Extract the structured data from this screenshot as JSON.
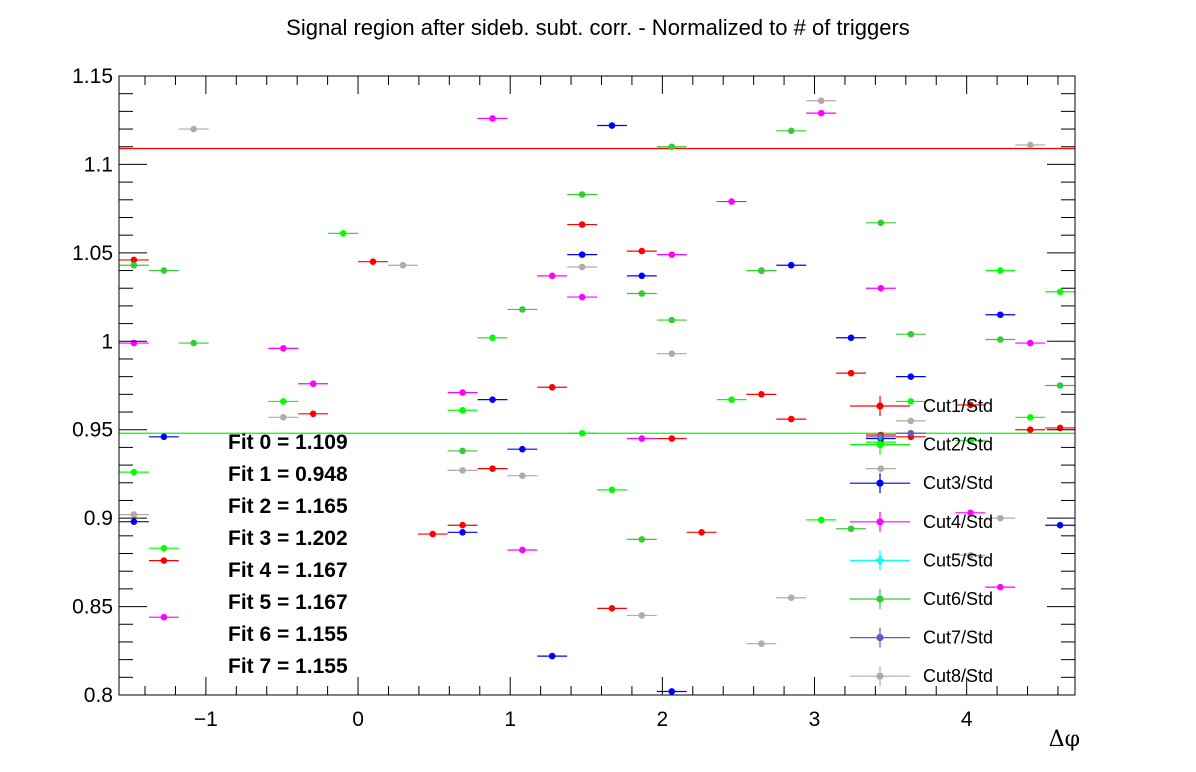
{
  "chart_data": {
    "type": "scatter",
    "title": "Signal region after sideb. subt. corr. - Normalized to # of triggers",
    "xlabel": "Δφ",
    "ylabel": "",
    "xlim": [
      -1.571,
      4.712
    ],
    "ylim": [
      0.8,
      1.15
    ],
    "xticks": [
      -1,
      0,
      1,
      2,
      3,
      4
    ],
    "xtick_labels": [
      "−1",
      "0",
      "1",
      "2",
      "3",
      "4"
    ],
    "yticks": [
      0.8,
      0.85,
      0.9,
      0.95,
      1,
      1.05,
      1.1,
      1.15
    ],
    "ytick_labels": [
      "0.8",
      "0.85",
      "0.9",
      "0.95",
      "1",
      "1.05",
      "1.1",
      "1.15"
    ],
    "x_half_width": 0.0982,
    "grid": false,
    "legend_position": "right",
    "fit_lines": [
      {
        "y": 1.109,
        "color": "#ff0000"
      },
      {
        "y": 0.948,
        "color": "#00ff00"
      }
    ],
    "fit_labels": [
      "Fit 0 = 1.109",
      "Fit 1 = 0.948",
      "Fit 2 = 1.165",
      "Fit 3 = 1.202",
      "Fit 4 = 1.167",
      "Fit 5 = 1.167",
      "Fit 6 = 1.155",
      "Fit 7 = 1.155"
    ],
    "series": [
      {
        "name": "Cut1/Std",
        "color": "#ff0000",
        "points": [
          [
            -1.473,
            1.046
          ],
          [
            -1.276,
            0.876
          ],
          [
            -0.295,
            0.959
          ],
          [
            0.098,
            1.045
          ],
          [
            0.491,
            0.891
          ],
          [
            0.687,
            0.896
          ],
          [
            0.884,
            0.928
          ],
          [
            1.276,
            0.974
          ],
          [
            1.473,
            1.066
          ],
          [
            1.669,
            0.849
          ],
          [
            1.865,
            1.051
          ],
          [
            2.062,
            0.945
          ],
          [
            2.258,
            0.892
          ],
          [
            2.651,
            0.97
          ],
          [
            2.847,
            0.956
          ],
          [
            3.24,
            0.982
          ],
          [
            3.436,
            0.947
          ],
          [
            3.633,
            0.946
          ],
          [
            4.025,
            0.964
          ],
          [
            4.418,
            0.95
          ],
          [
            4.614,
            0.951
          ]
        ]
      },
      {
        "name": "Cut2/Std",
        "color": "#00ff00",
        "points": [
          [
            -1.473,
            0.926
          ],
          [
            -1.276,
            0.883
          ],
          [
            -0.491,
            0.966
          ],
          [
            -0.098,
            1.061
          ],
          [
            0.687,
            0.961
          ],
          [
            0.884,
            1.002
          ],
          [
            1.473,
            0.948
          ],
          [
            1.669,
            0.916
          ],
          [
            2.455,
            0.967
          ],
          [
            3.044,
            0.899
          ],
          [
            3.436,
            0.943
          ],
          [
            3.633,
            0.966
          ],
          [
            4.025,
            0.944
          ],
          [
            4.221,
            1.04
          ],
          [
            4.418,
            0.957
          ],
          [
            4.614,
            1.028
          ]
        ]
      },
      {
        "name": "Cut3/Std",
        "color": "#0000ff",
        "points": [
          [
            -1.473,
            0.898
          ],
          [
            -1.276,
            0.946
          ],
          [
            0.687,
            0.892
          ],
          [
            0.884,
            0.967
          ],
          [
            1.08,
            0.939
          ],
          [
            1.276,
            0.822
          ],
          [
            1.473,
            1.049
          ],
          [
            1.669,
            1.122
          ],
          [
            1.865,
            1.037
          ],
          [
            2.062,
            0.802
          ],
          [
            2.651,
            1.04
          ],
          [
            2.847,
            1.043
          ],
          [
            3.24,
            1.002
          ],
          [
            3.436,
            0.945
          ],
          [
            3.633,
            0.98
          ],
          [
            4.221,
            1.015
          ],
          [
            4.614,
            0.896
          ]
        ]
      },
      {
        "name": "Cut4/Std",
        "color": "#ff00ff",
        "points": [
          [
            -1.473,
            0.999
          ],
          [
            -1.276,
            0.844
          ],
          [
            -0.491,
            0.996
          ],
          [
            -0.295,
            0.976
          ],
          [
            0.687,
            0.971
          ],
          [
            0.884,
            1.126
          ],
          [
            1.08,
            0.882
          ],
          [
            1.276,
            1.037
          ],
          [
            1.473,
            1.025
          ],
          [
            1.865,
            0.945
          ],
          [
            2.062,
            1.049
          ],
          [
            2.455,
            1.079
          ],
          [
            3.044,
            1.129
          ],
          [
            3.436,
            1.03
          ],
          [
            4.221,
            0.861
          ],
          [
            4.418,
            0.999
          ],
          [
            4.025,
            0.903
          ]
        ]
      },
      {
        "name": "Cut5/Std",
        "color": "#00ffff",
        "points": []
      },
      {
        "name": "Cut6/Std",
        "color": "#33cc33",
        "points": [
          [
            -1.473,
            1.043
          ],
          [
            -1.276,
            1.04
          ],
          [
            -1.08,
            0.999
          ],
          [
            0.687,
            0.938
          ],
          [
            1.08,
            1.018
          ],
          [
            1.473,
            1.083
          ],
          [
            1.865,
            1.027
          ],
          [
            1.865,
            0.888
          ],
          [
            2.062,
            1.012
          ],
          [
            2.062,
            1.11
          ],
          [
            2.651,
            1.04
          ],
          [
            2.847,
            1.119
          ],
          [
            3.24,
            0.894
          ],
          [
            3.436,
            1.067
          ],
          [
            3.633,
            1.004
          ],
          [
            4.221,
            1.001
          ],
          [
            4.614,
            0.975
          ]
        ]
      },
      {
        "name": "Cut7/Std",
        "color": "#5c5ccc",
        "points": [
          [
            3.436,
            0.946
          ],
          [
            3.633,
            0.948
          ]
        ]
      },
      {
        "name": "Cut8/Std",
        "color": "#b3aaa8",
        "points": [
          [
            -1.473,
            0.902
          ],
          [
            -1.08,
            1.12
          ],
          [
            -0.491,
            0.957
          ],
          [
            0.295,
            1.043
          ],
          [
            0.687,
            0.927
          ],
          [
            1.08,
            0.924
          ],
          [
            1.473,
            1.042
          ],
          [
            1.865,
            0.845
          ],
          [
            2.062,
            0.993
          ],
          [
            2.651,
            0.829
          ],
          [
            2.847,
            0.855
          ],
          [
            3.044,
            1.136
          ],
          [
            3.436,
            0.928
          ],
          [
            3.633,
            0.955
          ],
          [
            4.025,
            0.879
          ],
          [
            4.221,
            0.9
          ],
          [
            4.418,
            1.111
          ]
        ]
      }
    ]
  }
}
